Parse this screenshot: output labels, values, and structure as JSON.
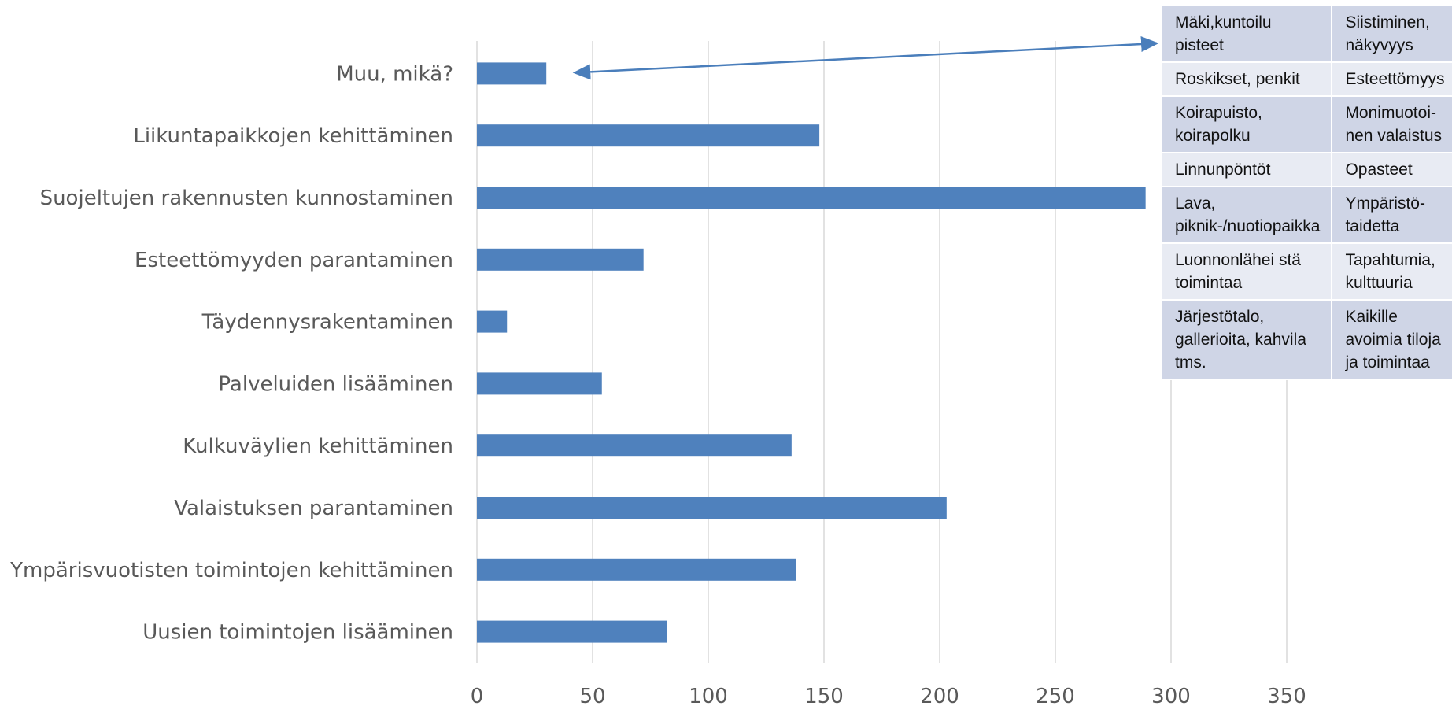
{
  "colors": {
    "bar": "#4f81bd",
    "grid": "#d9d9d9",
    "text": "#595959",
    "arrow": "#4a7ebb"
  },
  "chart_data": {
    "type": "bar",
    "orientation": "horizontal",
    "categories": [
      "Muu, mikä?",
      "Liikuntapaikkojen kehittäminen",
      "Suojeltujen rakennusten kunnostaminen",
      "Esteettömyyden parantaminen",
      "Täydennysrakentaminen",
      "Palveluiden lisääminen",
      "Kulkuväylien kehittäminen",
      "Valaistuksen parantaminen",
      "Ympärisvuotisten toimintojen kehittäminen",
      "Uusien toimintojen lisääminen"
    ],
    "values": [
      30,
      148,
      289,
      72,
      13,
      54,
      136,
      203,
      138,
      82
    ],
    "xlim": [
      0,
      350
    ],
    "xticks": [
      "0",
      "50",
      "100",
      "150",
      "200",
      "250",
      "300",
      "350"
    ],
    "grid": true,
    "annotation": {
      "rows": [
        [
          "Mäki,kuntoilu pisteet",
          "Siistiminen, näkyvyys"
        ],
        [
          "Roskikset, penkit",
          "Esteettömyys"
        ],
        [
          "Koirapuisto, koirapolku",
          "Monimuotoi-nen valaistus"
        ],
        [
          "Linnunpöntöt",
          "Opasteet"
        ],
        [
          "Lava, piknik-/nuotiopaikka",
          "Ympäristö-taidetta"
        ],
        [
          "Luonnonlähei stä toimintaa",
          "Tapahtumia, kulttuuria"
        ],
        [
          "Järjestötalo, gallerioita, kahvila tms.",
          "Kaikille avoimia tiloja ja toimintaa"
        ]
      ]
    }
  }
}
